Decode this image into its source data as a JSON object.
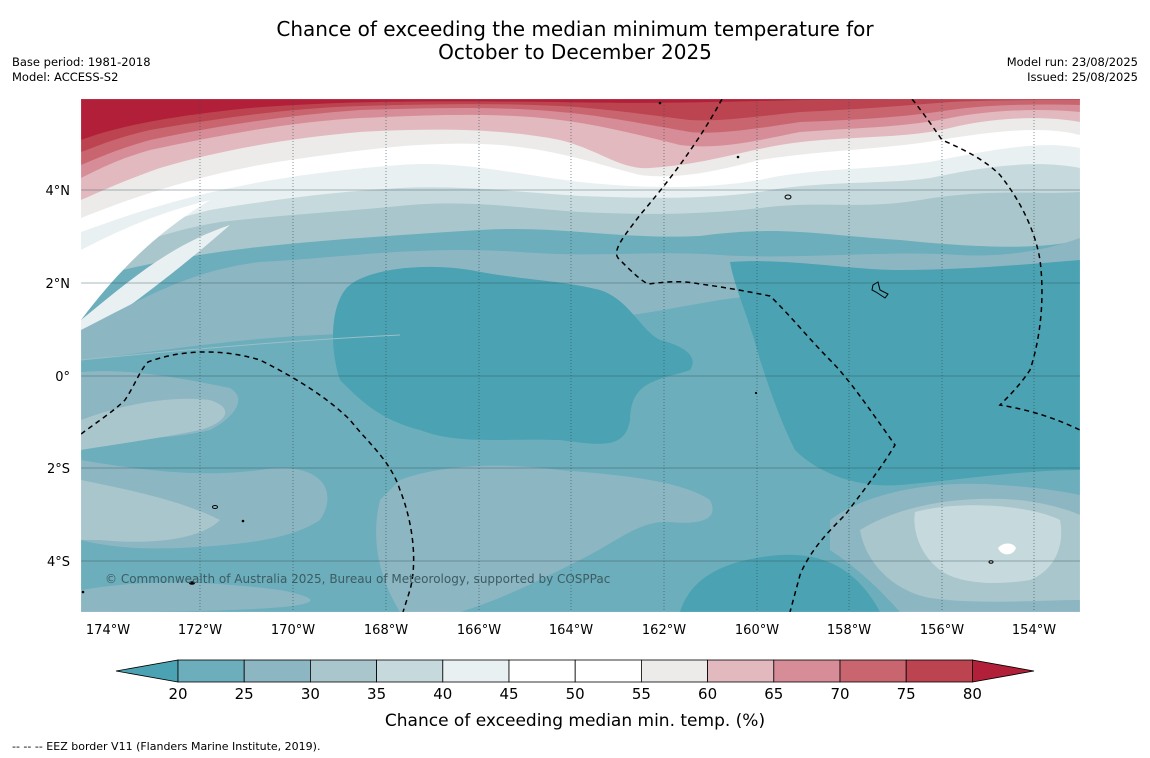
{
  "title_line1": "Chance of exceeding the median minimum temperature for",
  "title_line2": "October to December 2025",
  "meta_left": {
    "base_period": "Base period: 1981-2018",
    "model": "Model: ACCESS-S2"
  },
  "meta_right": {
    "model_run": "Model run: 23/08/2025",
    "issued": "Issued: 25/08/2025"
  },
  "map": {
    "lon_labels": [
      "174°W",
      "172°W",
      "170°W",
      "168°W",
      "166°W",
      "164°W",
      "162°W",
      "160°W",
      "158°W",
      "156°W",
      "154°W"
    ],
    "lat_labels": [
      "4°N",
      "2°N",
      "0°",
      "2°S",
      "4°S"
    ],
    "copyright": "© Commonwealth of Australia 2025, Bureau of Meteorology, supported by COSPPac"
  },
  "colorbar": {
    "ticks": [
      "20",
      "25",
      "30",
      "35",
      "40",
      "45",
      "50",
      "55",
      "60",
      "65",
      "70",
      "75",
      "80"
    ],
    "colors": [
      "#4aa2b2",
      "#6caebb",
      "#8db6c3",
      "#a8c6cc",
      "#c6dade",
      "#e9f0f2",
      "#ffffff",
      "#ffffff",
      "#ecebea",
      "#e2b9bf",
      "#d68d98",
      "#c9656f",
      "#bc4350",
      "#b21f38"
    ],
    "label": "Chance of exceeding median min. temp. (%)"
  },
  "footnote": "--  --  -- EEZ border V11 (Flanders Marine Institute, 2019)."
}
